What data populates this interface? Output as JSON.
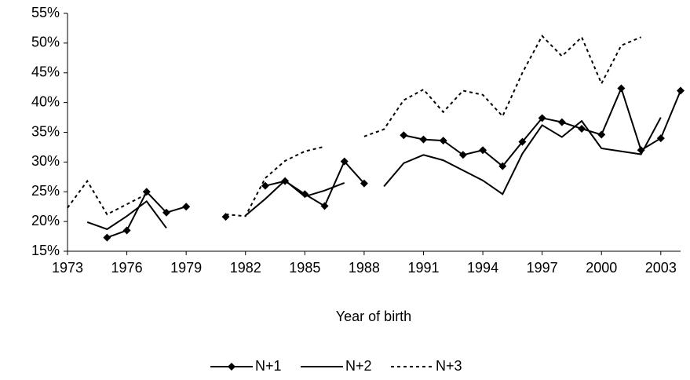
{
  "chart_data": {
    "type": "line",
    "x_label": "Year of birth",
    "x": [
      1973,
      1974,
      1975,
      1976,
      1977,
      1978,
      1979,
      1980,
      1981,
      1982,
      1983,
      1984,
      1985,
      1986,
      1987,
      1988,
      1989,
      1990,
      1991,
      1992,
      1993,
      1994,
      1995,
      1996,
      1997,
      1998,
      1999,
      2000,
      2001,
      2002,
      2003,
      2004
    ],
    "series": [
      {
        "name": "N+1",
        "color": "#000000",
        "dash": "none",
        "marker": "diamond",
        "values": [
          null,
          null,
          17.3,
          18.5,
          25,
          21.5,
          22.5,
          null,
          20.8,
          null,
          26,
          26.8,
          24.6,
          22.6,
          30.1,
          26.4,
          null,
          34.5,
          33.8,
          33.6,
          31.2,
          32,
          29.3,
          33.4,
          37.4,
          36.7,
          35.6,
          34.6,
          42.4,
          32,
          34,
          42
        ]
      },
      {
        "name": "N+2",
        "color": "#000000",
        "dash": "none",
        "marker": "none",
        "values": [
          null,
          19.9,
          18.7,
          20.9,
          23.4,
          18.9,
          null,
          null,
          null,
          21,
          23.8,
          26.9,
          24.2,
          25.2,
          26.5,
          null,
          25.9,
          29.8,
          31.2,
          30.3,
          28.6,
          26.9,
          24.6,
          31.4,
          36.2,
          34.2,
          36.9,
          32.3,
          31.8,
          31.3,
          37.5,
          null
        ]
      },
      {
        "name": "N+3",
        "color": "#000000",
        "dash": "4,4",
        "marker": "none",
        "values": [
          22.3,
          26.8,
          21.2,
          22.9,
          24.6,
          null,
          null,
          null,
          21.2,
          20.9,
          27.3,
          30.2,
          31.8,
          32.6,
          null,
          34.3,
          35.5,
          40.4,
          42.2,
          38.4,
          42,
          41.3,
          37.7,
          45,
          51.2,
          47.8,
          51,
          43.2,
          49.6,
          51,
          null,
          null
        ]
      }
    ],
    "xlim": [
      1973,
      2004
    ],
    "xticks": [
      1973,
      1976,
      1979,
      1982,
      1985,
      1988,
      1991,
      1994,
      1997,
      2000,
      2003
    ],
    "ylim": [
      15,
      55
    ],
    "yticks": [
      {
        "value": 15,
        "label": "15%"
      },
      {
        "value": 20,
        "label": "20%"
      },
      {
        "value": 25,
        "label": "25%"
      },
      {
        "value": 30,
        "label": "30%"
      },
      {
        "value": 35,
        "label": "35%"
      },
      {
        "value": 40,
        "label": "40%"
      },
      {
        "value": 45,
        "label": "45%"
      },
      {
        "value": 50,
        "label": "50%"
      },
      {
        "value": 55,
        "label": "55%"
      }
    ],
    "grid": false,
    "legend": "bottom"
  }
}
